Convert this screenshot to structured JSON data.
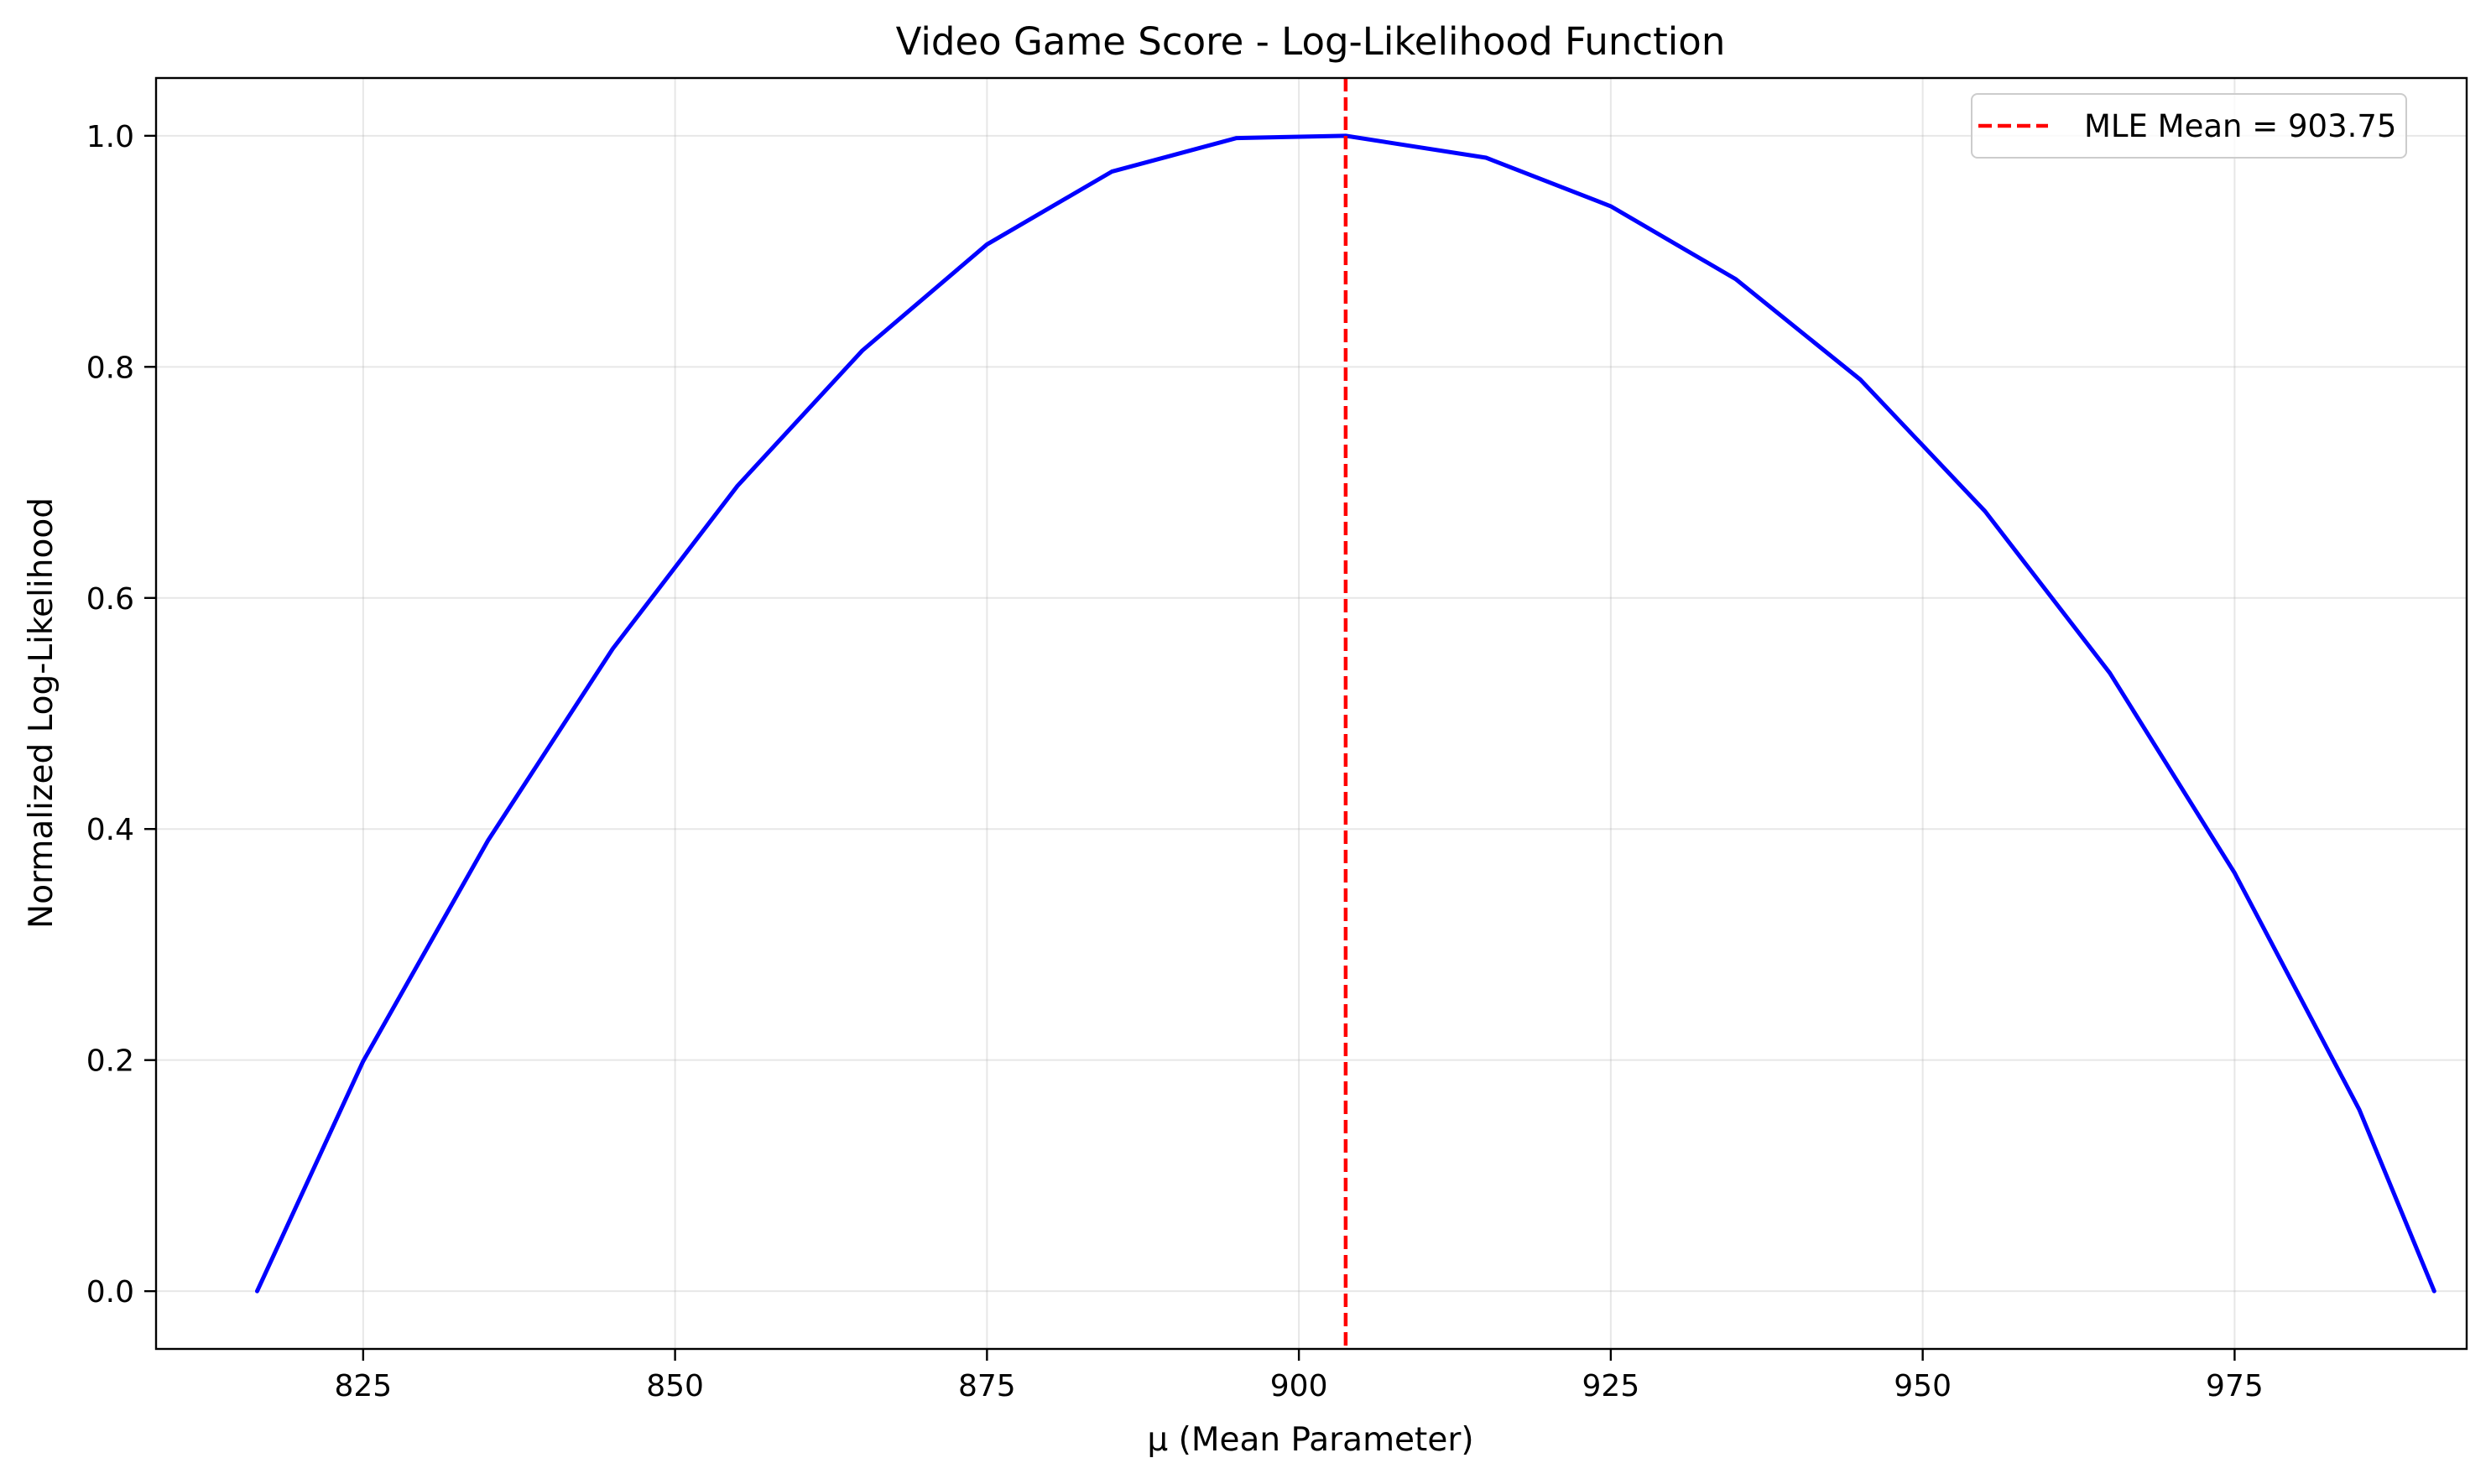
{
  "chart_data": {
    "type": "line",
    "title": "Video Game Score - Log-Likelihood Function",
    "xlabel": "μ (Mean Parameter)",
    "ylabel": "Normalized Log-Likelihood",
    "xlim": [
      808.4,
      993.6
    ],
    "ylim": [
      -0.05,
      1.05
    ],
    "xticks": [
      825,
      850,
      875,
      900,
      925,
      950,
      975
    ],
    "yticks": [
      0.0,
      0.2,
      0.4,
      0.6,
      0.8,
      1.0
    ],
    "xtick_labels": [
      "825",
      "850",
      "875",
      "900",
      "925",
      "950",
      "975"
    ],
    "ytick_labels": [
      "0.0",
      "0.2",
      "0.4",
      "0.6",
      "0.8",
      "1.0"
    ],
    "grid": true,
    "legend_position": "top-right",
    "series": [
      {
        "color": "#0000ff",
        "style": "solid",
        "x": [
          816.5,
          825,
          835,
          845,
          855,
          865,
          875,
          885,
          895,
          903.75,
          915,
          925,
          935,
          945,
          955,
          965,
          975,
          985,
          991
        ],
        "y": [
          0.0,
          0.199,
          0.39,
          0.556,
          0.697,
          0.814,
          0.906,
          0.969,
          0.998,
          1.0,
          0.981,
          0.939,
          0.876,
          0.789,
          0.675,
          0.535,
          0.362,
          0.157,
          0.0
        ]
      }
    ],
    "vlines": [
      {
        "name": "MLE Mean = 903.75",
        "x": 903.75,
        "color": "#ff0000",
        "style": "dashed"
      }
    ]
  }
}
